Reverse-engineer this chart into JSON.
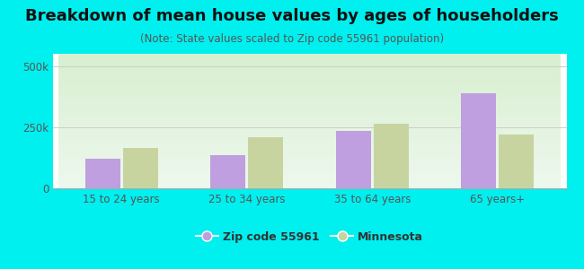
{
  "title": "Breakdown of mean house values by ages of householders",
  "subtitle": "(Note: State values scaled to Zip code 55961 population)",
  "categories": [
    "15 to 24 years",
    "25 to 34 years",
    "35 to 64 years",
    "65 years+"
  ],
  "zip_values": [
    120000,
    135000,
    235000,
    390000
  ],
  "mn_values": [
    165000,
    210000,
    265000,
    220000
  ],
  "zip_color": "#bf9fdf",
  "mn_color": "#c8d4a0",
  "background_color": "#00efef",
  "ylim": [
    0,
    550000
  ],
  "ytick_labels": [
    "0",
    "250k",
    "500k"
  ],
  "ytick_values": [
    0,
    250000,
    500000
  ],
  "legend_zip_label": "Zip code 55961",
  "legend_mn_label": "Minnesota",
  "bar_width": 0.28,
  "title_fontsize": 13,
  "subtitle_fontsize": 8.5,
  "tick_fontsize": 8.5,
  "legend_fontsize": 9,
  "axis_text_color": "#555555",
  "grid_color": "#cccccc",
  "plot_grad_top": "#d8efd0",
  "plot_grad_bottom": "#eef8ee"
}
